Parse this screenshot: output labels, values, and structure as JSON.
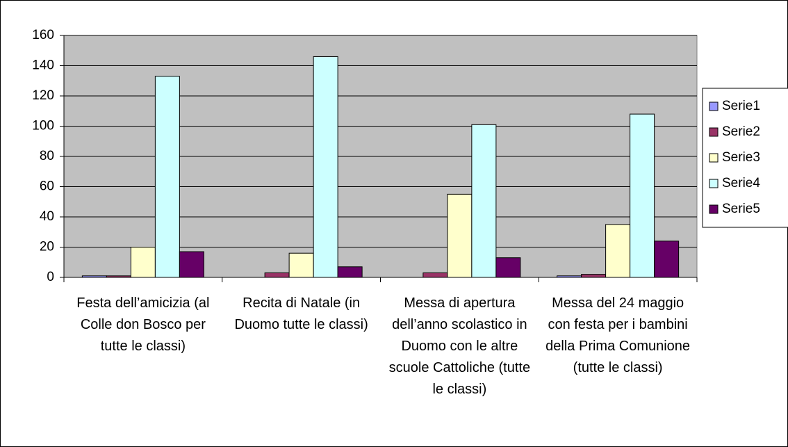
{
  "chart_data": {
    "type": "bar",
    "categories": [
      "Festa dell’amicizia (al Colle don Bosco per tutte le classi)",
      "Recita di Natale (in Duomo tutte le classi)",
      "Messa di apertura dell’anno scolastico in Duomo con le altre scuole Cattoliche (tutte le classi)",
      "Messa del 24 maggio con festa per i bambini della Prima Comunione (tutte le classi)"
    ],
    "series": [
      {
        "name": "Serie1",
        "color": "#9999ff",
        "values": [
          1,
          0,
          0,
          1
        ]
      },
      {
        "name": "Serie2",
        "color": "#993366",
        "values": [
          1,
          3,
          3,
          2
        ]
      },
      {
        "name": "Serie3",
        "color": "#ffffcc",
        "values": [
          20,
          16,
          55,
          35
        ]
      },
      {
        "name": "Serie4",
        "color": "#ccffff",
        "values": [
          133,
          146,
          101,
          108
        ]
      },
      {
        "name": "Serie5",
        "color": "#660066",
        "values": [
          17,
          7,
          13,
          24
        ]
      }
    ],
    "ylim": [
      0,
      160
    ],
    "yticks": [
      0,
      20,
      40,
      60,
      80,
      100,
      120,
      140,
      160
    ],
    "grid": true,
    "legend": "right"
  }
}
